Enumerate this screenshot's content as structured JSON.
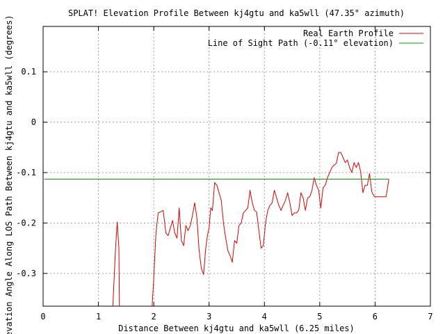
{
  "chart_data": {
    "type": "line",
    "title": "SPLAT! Elevation Profile Between kj4gtu and ka5wll (47.35° azimuth)",
    "xlabel": "Distance Between kj4gtu and ka5wll (6.25 miles)",
    "ylabel": "Elevation Angle Along LOS Path Between kj4gtu and ka5wll (degrees)",
    "xlim": [
      0,
      7
    ],
    "ylim": [
      -0.365,
      0.19
    ],
    "x_ticks": [
      0,
      1,
      2,
      3,
      4,
      5,
      6,
      7
    ],
    "x_tick_labels": [
      "0",
      "1",
      "2",
      "3",
      "4",
      "5",
      "6",
      "7"
    ],
    "y_ticks": [
      0.1,
      0,
      -0.1,
      -0.2,
      -0.3
    ],
    "y_tick_labels": [
      "0.1",
      "0",
      "-0.1",
      "-0.2",
      "-0.3"
    ],
    "grid": true,
    "legend_position": "top-right",
    "series": [
      {
        "name": "Real Earth Profile",
        "color": "#dd0000",
        "x": [
          1.26,
          1.31,
          1.34,
          1.37,
          1.38,
          1.97,
          2.0,
          2.04,
          2.08,
          2.12,
          2.17,
          2.22,
          2.26,
          2.3,
          2.34,
          2.38,
          2.42,
          2.46,
          2.5,
          2.54,
          2.58,
          2.62,
          2.66,
          2.7,
          2.74,
          2.78,
          2.82,
          2.86,
          2.9,
          2.94,
          2.97,
          3.0,
          3.03,
          3.06,
          3.1,
          3.14,
          3.18,
          3.22,
          3.26,
          3.3,
          3.34,
          3.38,
          3.42,
          3.46,
          3.5,
          3.54,
          3.58,
          3.62,
          3.66,
          3.7,
          3.74,
          3.78,
          3.82,
          3.86,
          3.9,
          3.94,
          3.98,
          4.02,
          4.06,
          4.1,
          4.14,
          4.18,
          4.22,
          4.26,
          4.3,
          4.34,
          4.38,
          4.42,
          4.46,
          4.5,
          4.54,
          4.58,
          4.62,
          4.66,
          4.7,
          4.74,
          4.78,
          4.82,
          4.86,
          4.9,
          4.94,
          4.98,
          5.02,
          5.06,
          5.1,
          5.14,
          5.18,
          5.22,
          5.26,
          5.3,
          5.34,
          5.38,
          5.42,
          5.46,
          5.5,
          5.54,
          5.58,
          5.62,
          5.66,
          5.7,
          5.74,
          5.78,
          5.82,
          5.86,
          5.9,
          5.94,
          5.97,
          6.0,
          6.04,
          6.08,
          6.12,
          6.16,
          6.2,
          6.25
        ],
        "y": [
          -0.365,
          -0.25,
          -0.198,
          -0.25,
          -0.365,
          -0.365,
          -0.31,
          -0.22,
          -0.18,
          -0.178,
          -0.175,
          -0.22,
          -0.225,
          -0.21,
          -0.195,
          -0.22,
          -0.23,
          -0.17,
          -0.235,
          -0.245,
          -0.205,
          -0.215,
          -0.205,
          -0.185,
          -0.16,
          -0.19,
          -0.255,
          -0.29,
          -0.302,
          -0.25,
          -0.225,
          -0.21,
          -0.17,
          -0.175,
          -0.12,
          -0.125,
          -0.14,
          -0.155,
          -0.2,
          -0.23,
          -0.255,
          -0.265,
          -0.278,
          -0.235,
          -0.24,
          -0.205,
          -0.2,
          -0.18,
          -0.175,
          -0.17,
          -0.135,
          -0.16,
          -0.175,
          -0.178,
          -0.215,
          -0.25,
          -0.245,
          -0.2,
          -0.175,
          -0.165,
          -0.16,
          -0.135,
          -0.15,
          -0.165,
          -0.175,
          -0.165,
          -0.155,
          -0.14,
          -0.16,
          -0.185,
          -0.18,
          -0.18,
          -0.175,
          -0.14,
          -0.15,
          -0.175,
          -0.15,
          -0.148,
          -0.135,
          -0.11,
          -0.125,
          -0.135,
          -0.17,
          -0.13,
          -0.125,
          -0.11,
          -0.1,
          -0.09,
          -0.085,
          -0.082,
          -0.06,
          -0.06,
          -0.07,
          -0.08,
          -0.075,
          -0.09,
          -0.1,
          -0.08,
          -0.09,
          -0.08,
          -0.098,
          -0.14,
          -0.125,
          -0.125,
          -0.102,
          -0.138,
          -0.145,
          -0.148,
          -0.148,
          -0.148,
          -0.148,
          -0.148,
          -0.148,
          -0.113
        ]
      },
      {
        "name": "Line of Sight Path (-0.11° elevation)",
        "color": "#00aa00",
        "x": [
          0.02,
          6.25
        ],
        "y": [
          -0.113,
          -0.113
        ]
      }
    ]
  }
}
